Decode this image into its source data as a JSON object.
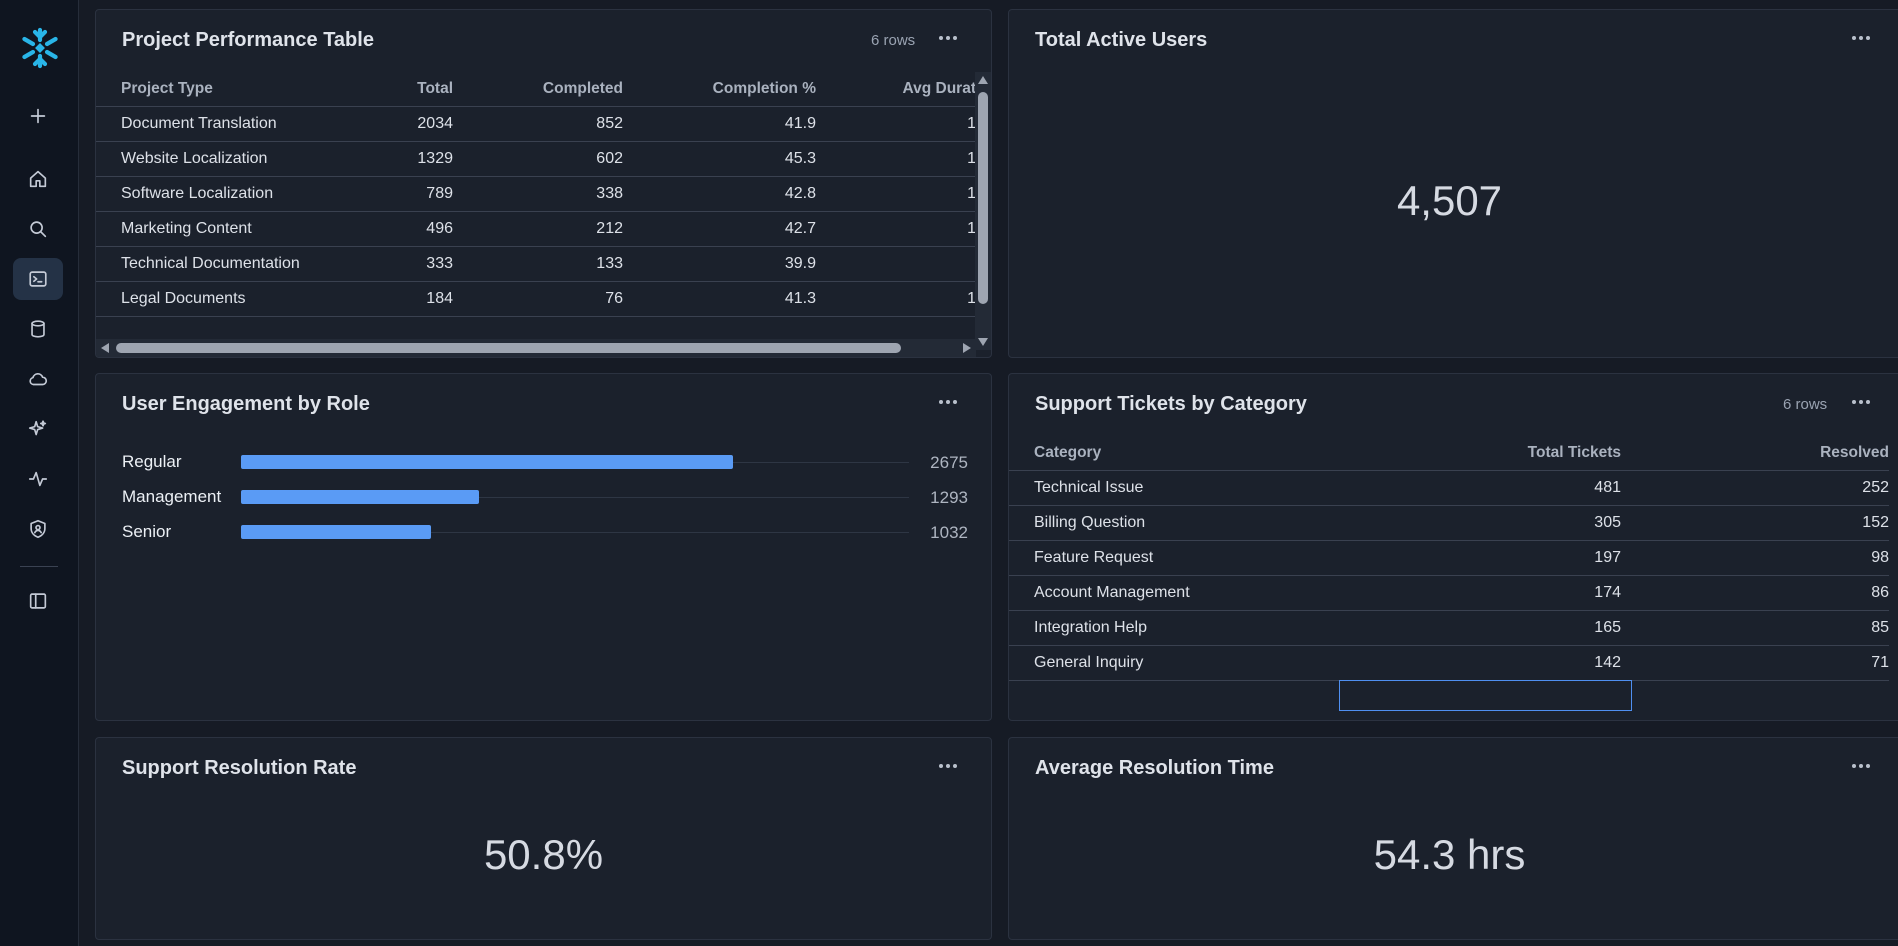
{
  "colors": {
    "bar": "#5a9bf5",
    "selection": "#4f8ff0"
  },
  "sidebar": {
    "logo_icon": "snowflake-icon",
    "items": [
      {
        "name": "add",
        "icon": "plus-icon"
      },
      {
        "name": "home",
        "icon": "home-icon"
      },
      {
        "name": "search",
        "icon": "search-icon"
      },
      {
        "name": "worksheets",
        "icon": "terminal-icon",
        "active": true
      },
      {
        "name": "data",
        "icon": "database-icon"
      },
      {
        "name": "cloud",
        "icon": "cloud-icon"
      },
      {
        "name": "ai",
        "icon": "sparkle-icon"
      },
      {
        "name": "monitoring",
        "icon": "activity-icon"
      },
      {
        "name": "admin",
        "icon": "shield-icon"
      },
      {
        "name": "toggle-sidebar",
        "icon": "sidebar-icon"
      }
    ]
  },
  "project_table": {
    "title": "Project Performance Table",
    "rows_label": "6 rows",
    "columns": [
      "Project Type",
      "Total",
      "Completed",
      "Completion %",
      "Avg Durat"
    ],
    "rows": [
      [
        "Document Translation",
        "2034",
        "852",
        "41.9",
        "1"
      ],
      [
        "Website Localization",
        "1329",
        "602",
        "45.3",
        "1"
      ],
      [
        "Software Localization",
        "789",
        "338",
        "42.8",
        "1"
      ],
      [
        "Marketing Content",
        "496",
        "212",
        "42.7",
        "1"
      ],
      [
        "Technical Documentation",
        "333",
        "133",
        "39.9",
        ""
      ],
      [
        "Legal Documents",
        "184",
        "76",
        "41.3",
        "1"
      ]
    ]
  },
  "total_users": {
    "title": "Total Active Users",
    "value": "4,507"
  },
  "engagement": {
    "title": "User Engagement by Role",
    "chart_data": {
      "type": "bar",
      "orientation": "horizontal",
      "categories": [
        "Regular",
        "Management",
        "Senior"
      ],
      "values": [
        2675,
        1293,
        1032
      ],
      "xlim": [
        0,
        3630
      ]
    }
  },
  "support_table": {
    "title": "Support Tickets by Category",
    "rows_label": "6 rows",
    "columns": [
      "Category",
      "Total Tickets",
      "Resolved"
    ],
    "rows": [
      [
        "Technical Issue",
        "481",
        "252"
      ],
      [
        "Billing Question",
        "305",
        "152"
      ],
      [
        "Feature Request",
        "197",
        "98"
      ],
      [
        "Account Management",
        "174",
        "86"
      ],
      [
        "Integration Help",
        "165",
        "85"
      ],
      [
        "General Inquiry",
        "142",
        "71"
      ]
    ]
  },
  "resolution_rate": {
    "title": "Support Resolution Rate",
    "value": "50.8%"
  },
  "resolution_time": {
    "title": "Average Resolution Time",
    "value": "54.3 hrs"
  }
}
